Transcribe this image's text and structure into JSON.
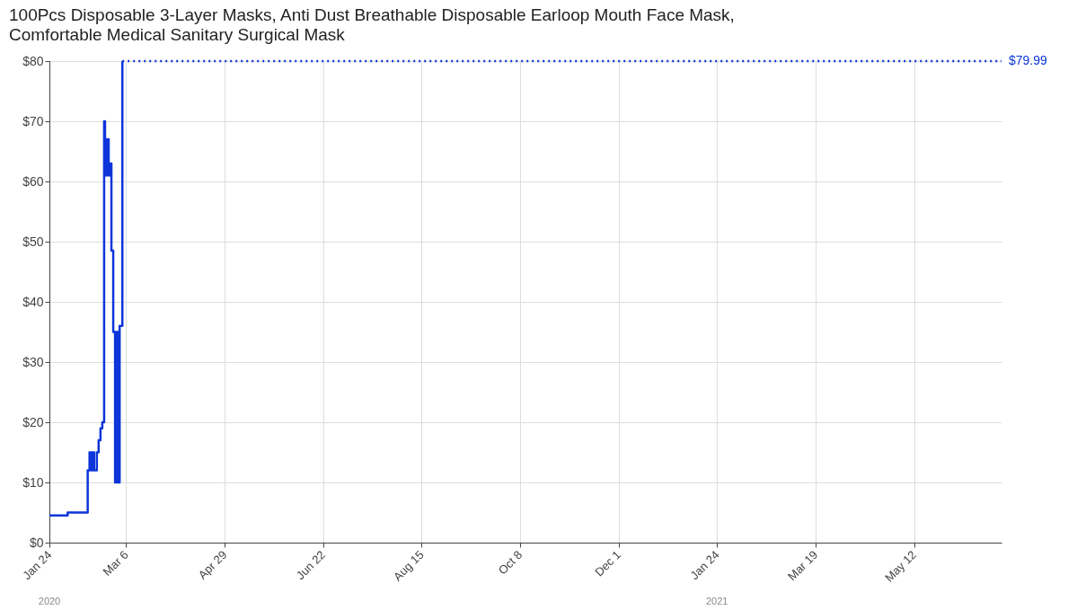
{
  "chart_data": {
    "type": "step",
    "title": "100Pcs Disposable 3-Layer Masks, Anti Dust Breathable Disposable Earloop Mouth Face Mask, Comfortable Medical Sanitary Surgical Mask",
    "series": [
      {
        "color": "#0d35d9",
        "x": [
          "2020-01-24",
          "2020-02-03",
          "2020-02-14",
          "2020-02-15",
          "2020-02-15T12:00",
          "2020-02-16",
          "2020-02-16T12:00",
          "2020-02-17",
          "2020-02-17T12:00",
          "2020-02-19",
          "2020-02-20",
          "2020-02-21",
          "2020-02-22",
          "2020-02-23",
          "2020-02-23T12:00",
          "2020-02-24",
          "2020-02-24T12:00",
          "2020-02-25",
          "2020-02-25T12:00",
          "2020-02-26",
          "2020-02-27",
          "2020-02-28",
          "2020-02-29",
          "2020-02-29T12:00",
          "2020-03-01",
          "2020-03-01T12:00",
          "2020-03-02",
          "2020-03-02T12:00",
          "2020-03-04"
        ],
        "values": [
          4.5,
          5,
          12,
          15,
          12,
          15,
          12,
          15,
          12,
          15,
          17,
          19,
          20,
          70,
          61,
          67,
          61,
          67,
          61,
          63,
          48.5,
          35,
          10,
          35,
          10,
          35,
          10,
          36,
          79.99
        ]
      },
      {
        "color": "#0d35d9",
        "line_style": "dotted",
        "x": [
          "2020-03-04",
          "2021-06-29"
        ],
        "values": [
          79.99,
          79.99
        ]
      }
    ],
    "xlim": [
      "2020-01-24",
      "2021-06-29"
    ],
    "xticks": [
      {
        "value": "2020-01-24",
        "label": "Jan 24"
      },
      {
        "value": "2020-03-06",
        "label": "Mar 6"
      },
      {
        "value": "2020-04-29",
        "label": "Apr 29"
      },
      {
        "value": "2020-06-22",
        "label": "Jun 22"
      },
      {
        "value": "2020-08-15",
        "label": "Aug 15"
      },
      {
        "value": "2020-10-08",
        "label": "Oct 8"
      },
      {
        "value": "2020-12-01",
        "label": "Dec 1"
      },
      {
        "value": "2021-01-24",
        "label": "Jan 24"
      },
      {
        "value": "2021-03-19",
        "label": "Mar 19"
      },
      {
        "value": "2021-05-12",
        "label": "May 12"
      }
    ],
    "ylim": [
      0,
      80
    ],
    "yticks": [
      {
        "value": 0,
        "label": "$0"
      },
      {
        "value": 10,
        "label": "$10"
      },
      {
        "value": 20,
        "label": "$20"
      },
      {
        "value": 30,
        "label": "$30"
      },
      {
        "value": 40,
        "label": "$40"
      },
      {
        "value": 50,
        "label": "$50"
      },
      {
        "value": 60,
        "label": "$60"
      },
      {
        "value": 70,
        "label": "$70"
      },
      {
        "value": 80,
        "label": "$80"
      }
    ],
    "grid": true,
    "annotations": [
      {
        "text": "$79.99",
        "x": "2021-06-29",
        "y": 79.99
      },
      "2020",
      "2021"
    ]
  }
}
